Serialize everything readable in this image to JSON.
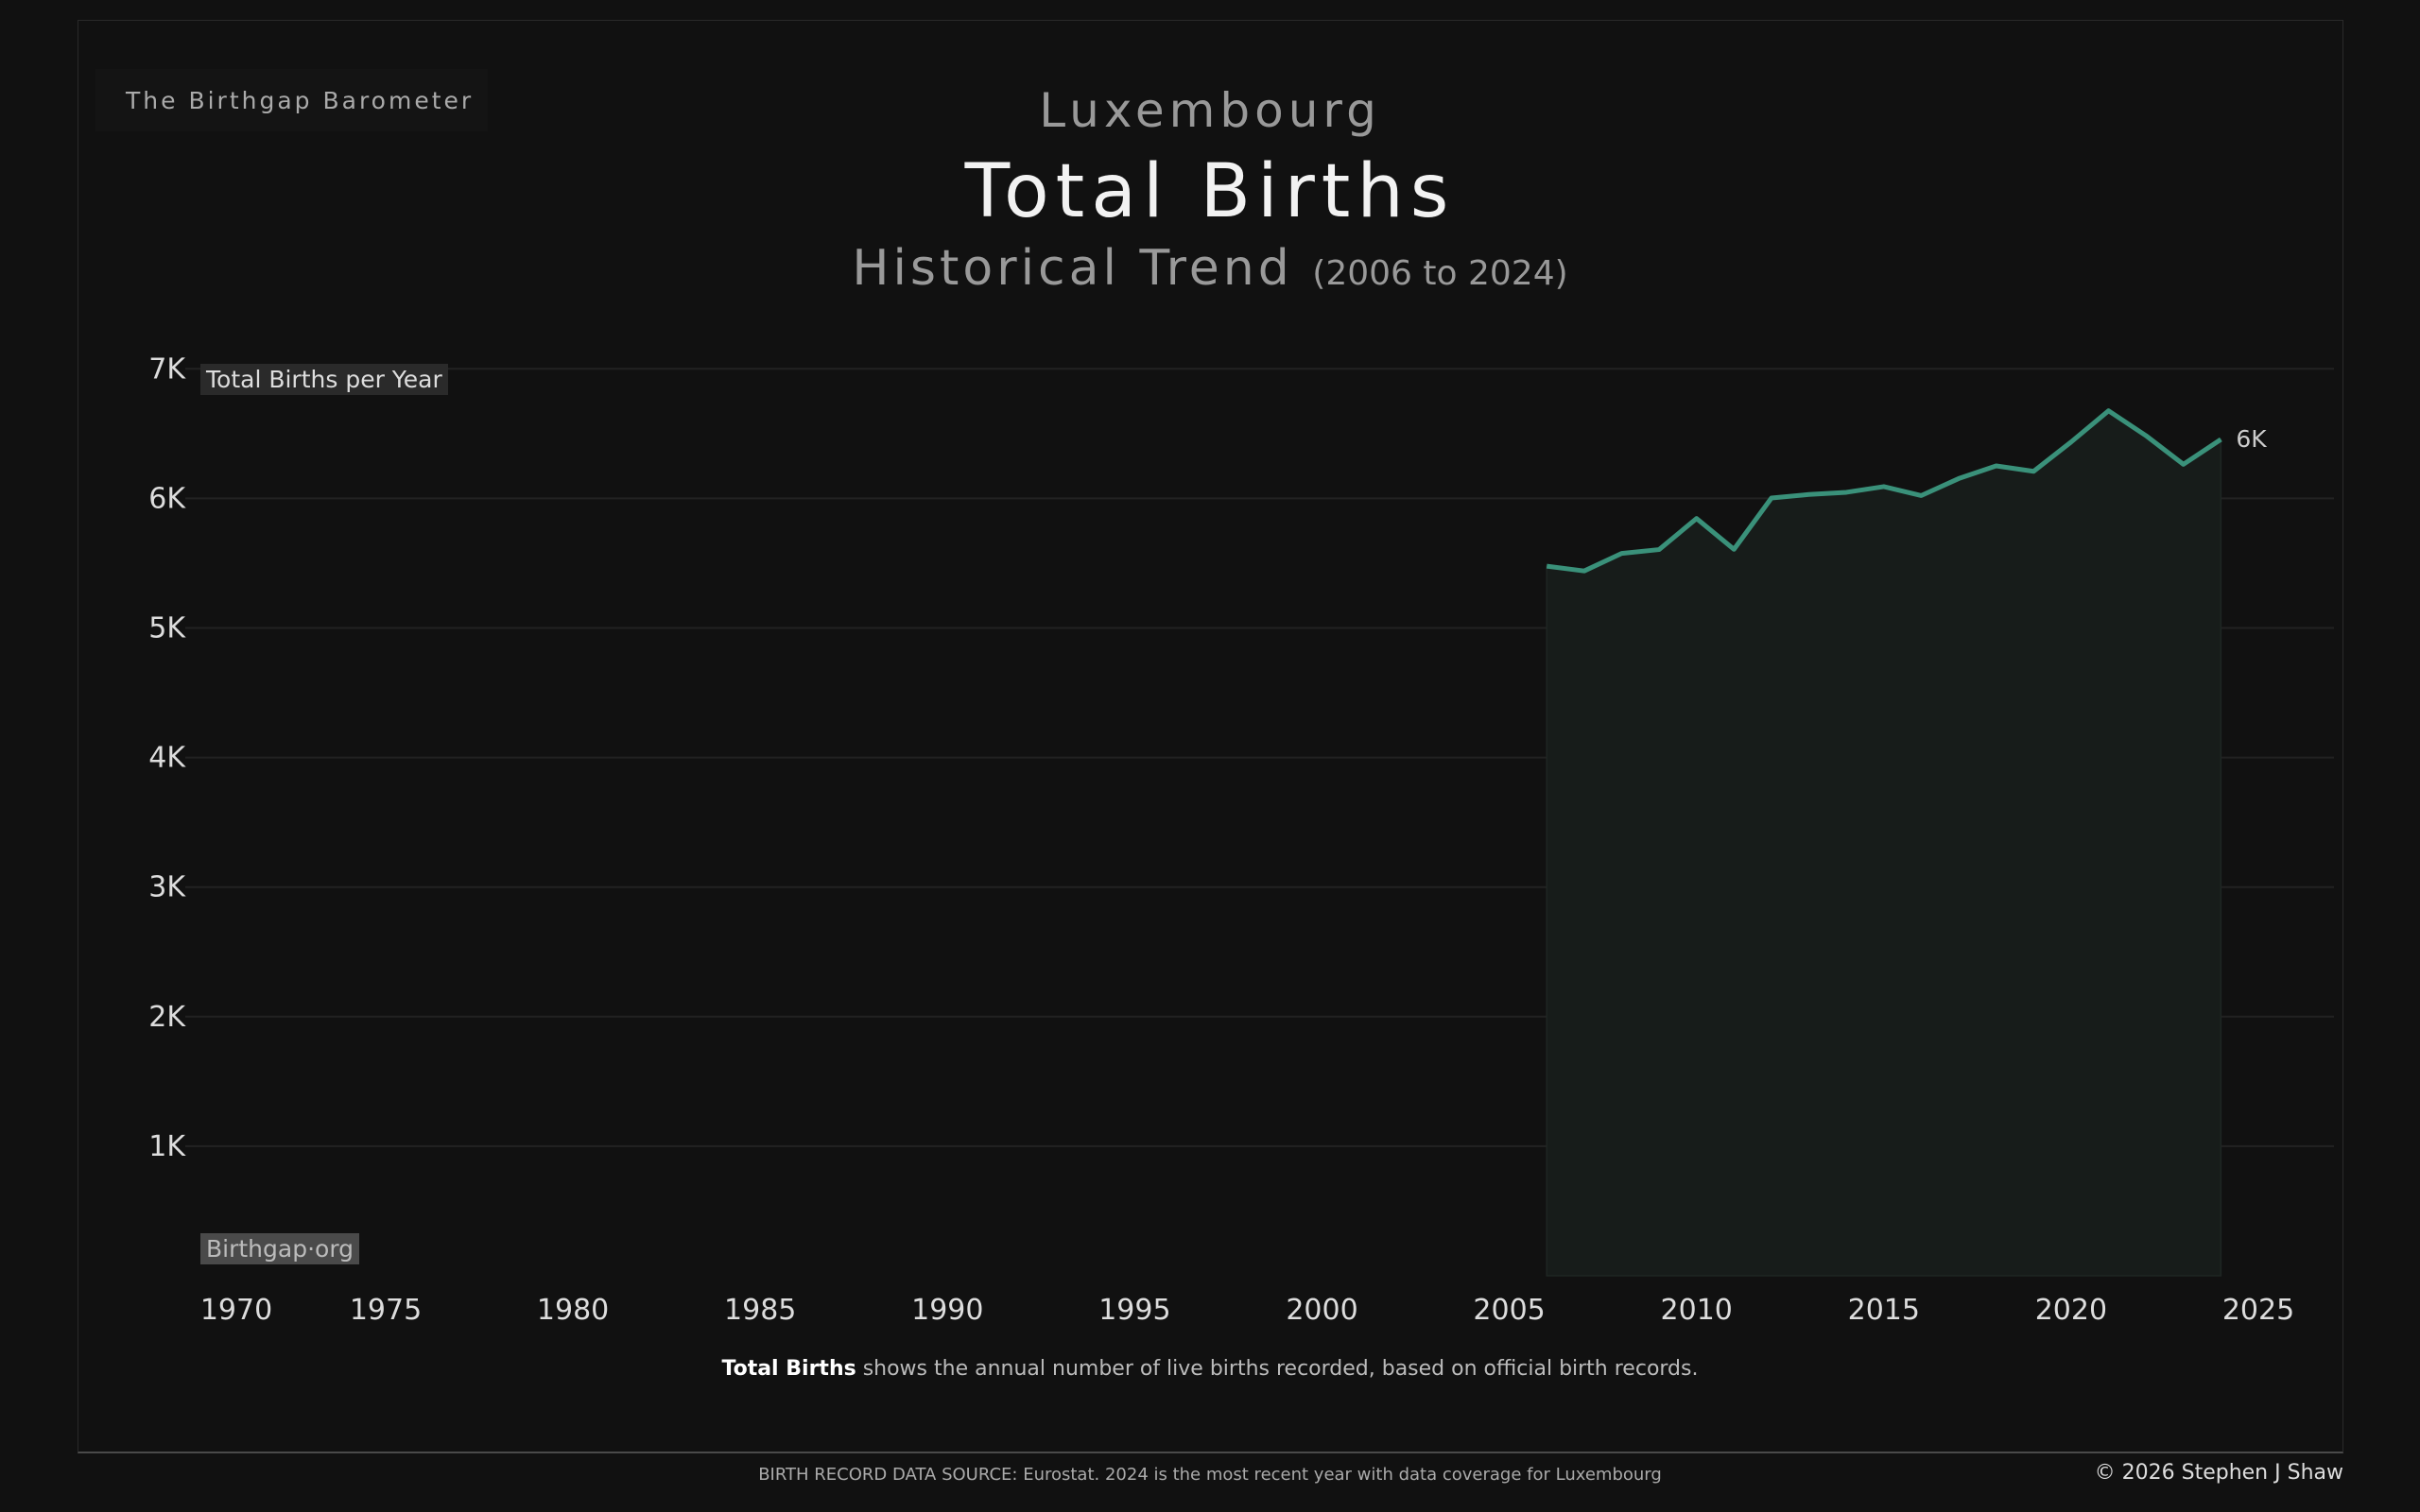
{
  "brand": "The Birthgap Barometer",
  "header": {
    "country": "Luxembourg",
    "title": "Total Births",
    "subtitle": "Historical Trend",
    "range": "(2006 to 2024)"
  },
  "chart_data": {
    "type": "area",
    "title": "Total Births",
    "ylabel": "Total Births per Year",
    "ylim": [
      0,
      7000
    ],
    "xlim": [
      1970,
      2025
    ],
    "grid": true,
    "color": "#3a917a",
    "x_ticks": [
      "1970",
      "1975",
      "1980",
      "1985",
      "1990",
      "1995",
      "2000",
      "2005",
      "2010",
      "2015",
      "2020",
      "2025"
    ],
    "y_ticks": [
      "1K",
      "2K",
      "3K",
      "4K",
      "5K",
      "6K",
      "7K"
    ],
    "x": [
      2006,
      2007,
      2008,
      2009,
      2010,
      2011,
      2012,
      2013,
      2014,
      2015,
      2016,
      2017,
      2018,
      2019,
      2020,
      2021,
      2022,
      2023,
      2024
    ],
    "values": [
      5477,
      5440,
      5575,
      5605,
      5845,
      5607,
      6003,
      6030,
      6047,
      6091,
      6022,
      6153,
      6251,
      6209,
      6435,
      6676,
      6484,
      6263,
      6455
    ],
    "end_label": "6K"
  },
  "watermark": "Birthgap·org",
  "caption": {
    "bold": "Total Births",
    "text": " shows the annual number of live births recorded, based on official birth records."
  },
  "footer": {
    "source": "BIRTH RECORD DATA SOURCE: Eurostat. 2024 is the most recent year with data coverage for Luxembourg",
    "copyright": "© 2026 Stephen J Shaw"
  }
}
